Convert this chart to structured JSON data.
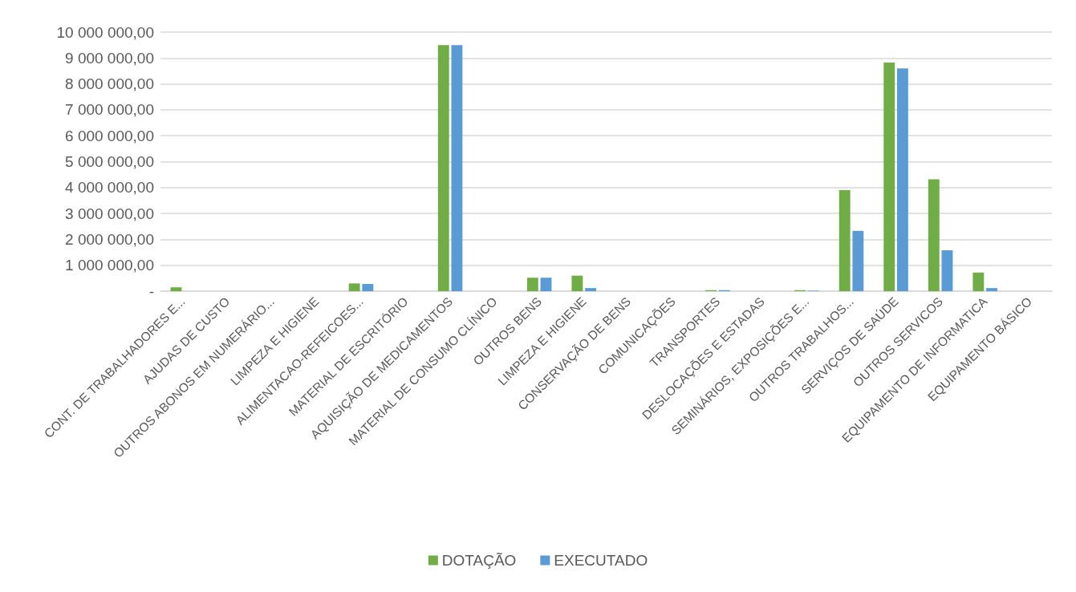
{
  "chart_data": {
    "type": "bar",
    "categories": [
      "CONT. DE TRABALHADORES E...",
      "AJUDAS DE CUSTO",
      "OUTROS ABONOS EM NUMERÁRIO...",
      "LIMPEZA E HIGIENE",
      "ALIMENTACAO-REFEICOES...",
      "MATERIAL DE ESCRITÓRIO",
      "AQUISIÇÃO DE MEDICAMENTOS",
      "MATERIAL DE CONSUMO CLÍNICO",
      "OUTROS BENS",
      "LIMPEZA E HIGIENE",
      "CONSERVAÇÃO DE BENS",
      "COMUNICAÇÕES",
      "TRANSPORTES",
      "DESLOCAÇÕES E ESTADAS",
      "SEMINÁRIOS, EXPOSIÇÕES E...",
      "OUTROS TRABALHOS...",
      "SERVIÇOS DE SAÚDE",
      "OUTROS SERVICOS",
      "EQUIPAMENTO DE INFORMATICA",
      "EQUIPAMENTO BÁSICO"
    ],
    "series": [
      {
        "name": "DOTAÇÃO",
        "color": "#70ad47",
        "values": [
          150000,
          0,
          0,
          0,
          300000,
          0,
          9500000,
          0,
          520000,
          600000,
          0,
          0,
          40000,
          0,
          40000,
          3900000,
          8820000,
          4320000,
          720000,
          0
        ]
      },
      {
        "name": "EXECUTADO",
        "color": "#5b9bd5",
        "values": [
          0,
          0,
          0,
          0,
          280000,
          0,
          9500000,
          0,
          520000,
          120000,
          0,
          0,
          40000,
          0,
          20000,
          2330000,
          8600000,
          1580000,
          120000,
          0
        ]
      }
    ],
    "ylim": [
      0,
      10000000
    ],
    "yticks": [
      {
        "value": 0,
        "label": "-"
      },
      {
        "value": 1000000,
        "label": "1 000 000,00"
      },
      {
        "value": 2000000,
        "label": "2 000 000,00"
      },
      {
        "value": 3000000,
        "label": "3 000 000,00"
      },
      {
        "value": 4000000,
        "label": "4 000 000,00"
      },
      {
        "value": 5000000,
        "label": "5 000 000,00"
      },
      {
        "value": 6000000,
        "label": "6 000 000,00"
      },
      {
        "value": 7000000,
        "label": "7 000 000,00"
      },
      {
        "value": 8000000,
        "label": "8 000 000,00"
      },
      {
        "value": 9000000,
        "label": "9 000 000,00"
      },
      {
        "value": 10000000,
        "label": "10 000 000,00"
      }
    ],
    "grid": "y",
    "legend": "bottom"
  }
}
